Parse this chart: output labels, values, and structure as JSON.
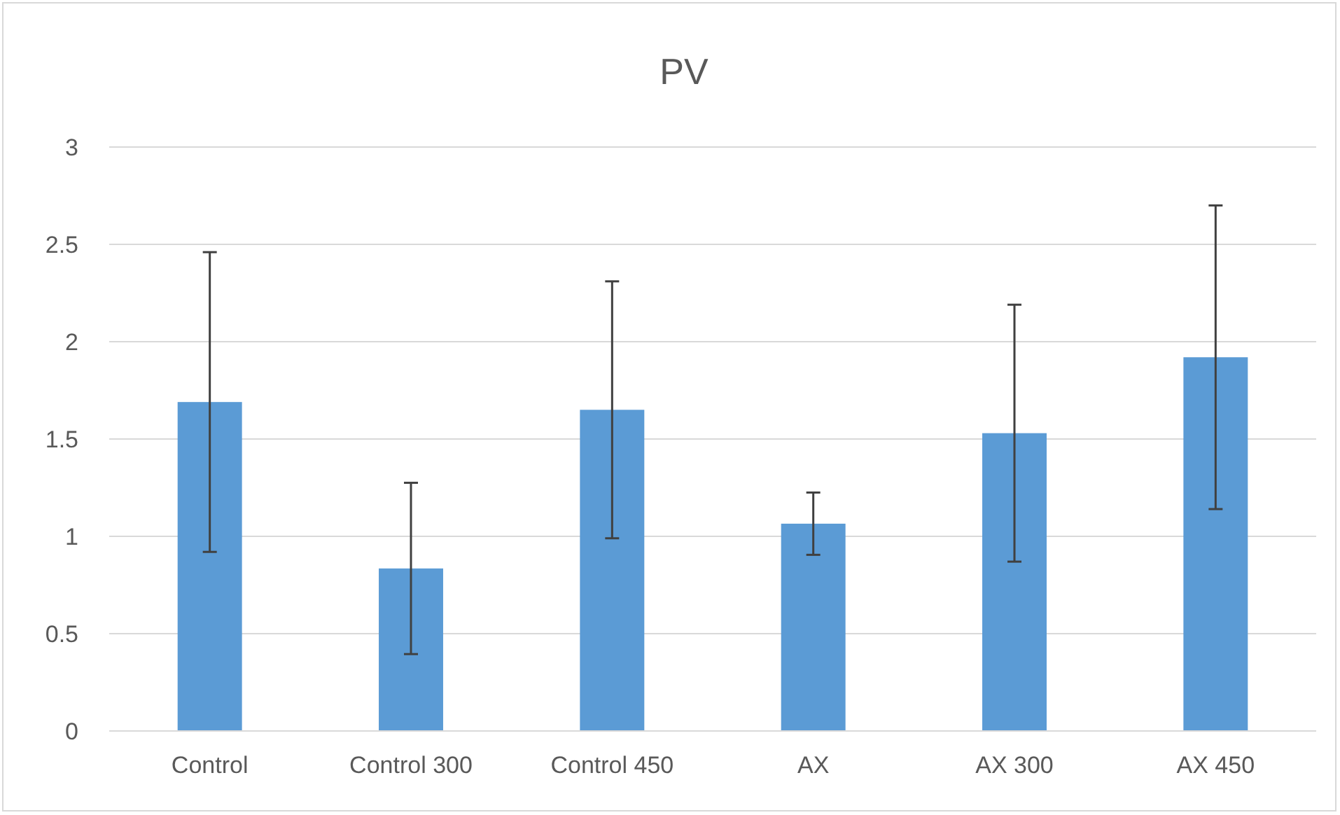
{
  "chart_data": {
    "type": "bar",
    "title": "PV",
    "categories": [
      "Control",
      "Control 300",
      "Control 450",
      "AX",
      "AX 300",
      "AX 450"
    ],
    "values": [
      1.69,
      0.835,
      1.65,
      1.065,
      1.53,
      1.92
    ],
    "errors": [
      0.77,
      0.44,
      0.66,
      0.16,
      0.66,
      0.78
    ],
    "color": "#5b9bd5",
    "ylim": [
      0,
      3
    ],
    "yticks": [
      0,
      0.5,
      1,
      1.5,
      2,
      2.5,
      3
    ],
    "grid": "y"
  }
}
